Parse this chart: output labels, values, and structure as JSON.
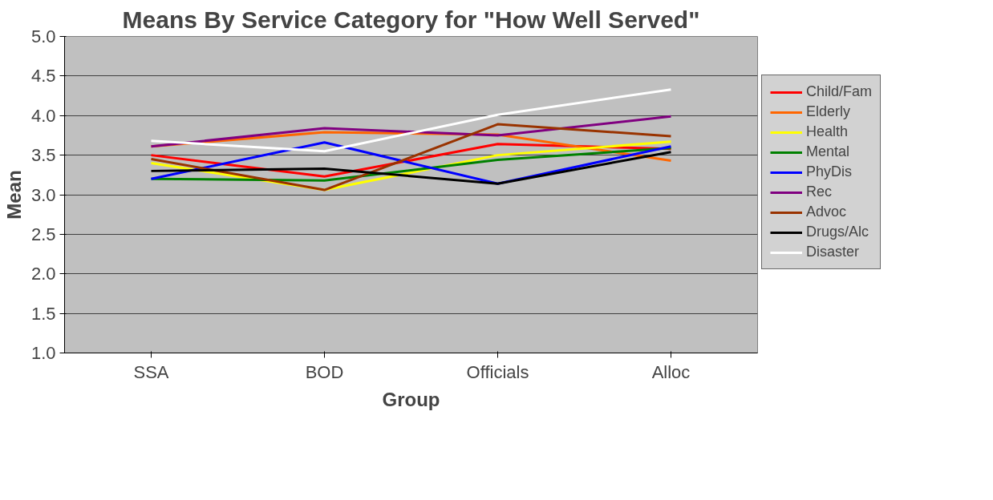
{
  "chart_data": {
    "type": "line",
    "title": "Means By Service Category for \"How Well Served\"",
    "xlabel": "Group",
    "ylabel": "Mean",
    "categories": [
      "SSA",
      "BOD",
      "Officials",
      "Alloc"
    ],
    "ylim": [
      1.0,
      5.0
    ],
    "yticks": [
      {
        "value": 1,
        "label": "1.0"
      },
      {
        "value": 1.5,
        "label": "1.5"
      },
      {
        "value": 2,
        "label": "2.0"
      },
      {
        "value": 2.5,
        "label": "2.5"
      },
      {
        "value": 3,
        "label": "3.0"
      },
      {
        "value": 3.5,
        "label": "3.5"
      },
      {
        "value": 4,
        "label": "4.0"
      },
      {
        "value": 4.5,
        "label": "4.5"
      },
      {
        "value": 5,
        "label": "5.0"
      }
    ],
    "grid": "y",
    "legend": "right",
    "marker": "none",
    "line_style": "solid",
    "series": [
      {
        "name": "Child/Fam",
        "color": "#ff0000",
        "values": [
          3.5,
          3.23,
          3.64,
          3.58
        ]
      },
      {
        "name": "Elderly",
        "color": "#ff6600",
        "values": [
          3.61,
          3.79,
          3.76,
          3.43
        ]
      },
      {
        "name": "Health",
        "color": "#ffff00",
        "values": [
          3.4,
          3.06,
          3.5,
          3.67
        ]
      },
      {
        "name": "Mental",
        "color": "#008000",
        "values": [
          3.2,
          3.18,
          3.44,
          3.59
        ]
      },
      {
        "name": "PhyDis",
        "color": "#0000ff",
        "values": [
          3.2,
          3.66,
          3.14,
          3.61
        ]
      },
      {
        "name": "Rec",
        "color": "#800080",
        "values": [
          3.61,
          3.84,
          3.75,
          3.99
        ]
      },
      {
        "name": "Advoc",
        "color": "#993300",
        "values": [
          3.45,
          3.06,
          3.89,
          3.74
        ]
      },
      {
        "name": "Drugs/Alc",
        "color": "#000000",
        "values": [
          3.3,
          3.33,
          3.14,
          3.54
        ]
      },
      {
        "name": "Disaster",
        "color": "#ffffff",
        "values": [
          3.68,
          3.55,
          4.01,
          4.33
        ]
      }
    ]
  }
}
